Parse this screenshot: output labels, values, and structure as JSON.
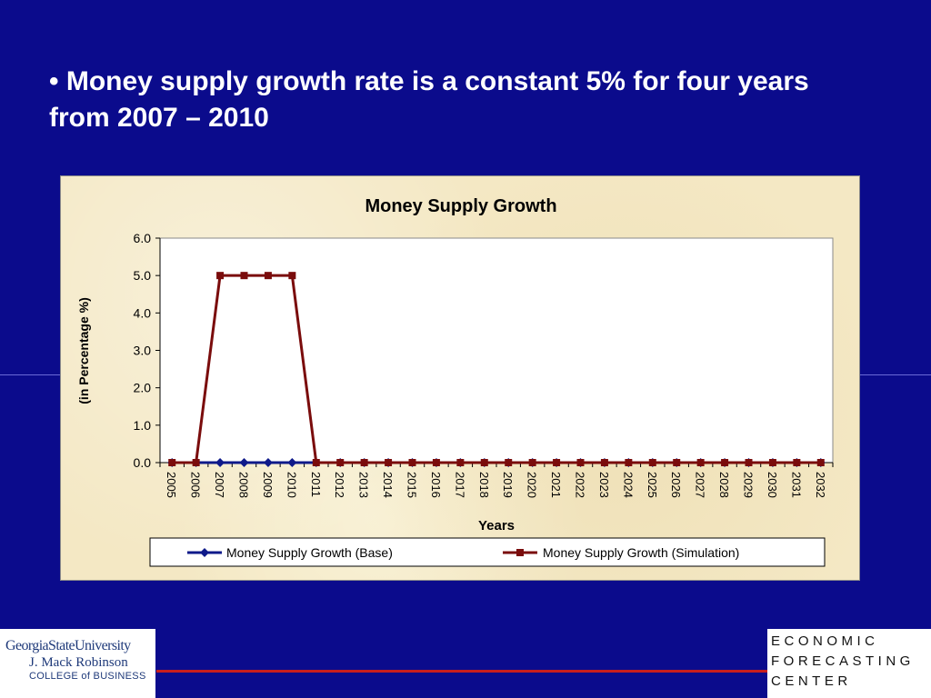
{
  "slide": {
    "headline": "• Money supply growth rate is a constant 5% for four years from 2007 – 2010"
  },
  "logos": {
    "gsu": {
      "line1": "GeorgiaStateUniversity",
      "line2": "J. Mack Robinson",
      "line3": "COLLEGE of BUSINESS"
    },
    "efc": {
      "line1": "ECONOMIC",
      "line2": "FORECASTING",
      "line3": "CENTER"
    }
  },
  "colors": {
    "background": "#0b0b8c",
    "chart_bg": "#f4e8c4",
    "base_series": "#0f1a8a",
    "simulation_series": "#7a0c0c",
    "footer_rule": "#c81e1e"
  },
  "chart_data": {
    "type": "line",
    "title": "Money Supply Growth",
    "xlabel": "Years",
    "ylabel": "(in Percentage %)",
    "ylim": [
      0,
      6
    ],
    "yticks": [
      "0.0",
      "1.0",
      "2.0",
      "3.0",
      "4.0",
      "5.0",
      "6.0"
    ],
    "grid": false,
    "legend_position": "bottom",
    "categories": [
      "2005",
      "2006",
      "2007",
      "2008",
      "2009",
      "2010",
      "2011",
      "2012",
      "2013",
      "2014",
      "2015",
      "2016",
      "2017",
      "2018",
      "2019",
      "2020",
      "2021",
      "2022",
      "2023",
      "2024",
      "2025",
      "2026",
      "2027",
      "2028",
      "2029",
      "2030",
      "2031",
      "2032"
    ],
    "series": [
      {
        "name": "Money Supply Growth (Base)",
        "marker": "diamond",
        "color": "#0f1a8a",
        "values": [
          0,
          0,
          0,
          0,
          0,
          0,
          0,
          0,
          0,
          0,
          0,
          0,
          0,
          0,
          0,
          0,
          0,
          0,
          0,
          0,
          0,
          0,
          0,
          0,
          0,
          0,
          0,
          0
        ]
      },
      {
        "name": "Money Supply Growth (Simulation)",
        "marker": "square",
        "color": "#7a0c0c",
        "values": [
          0,
          0,
          5,
          5,
          5,
          5,
          0,
          0,
          0,
          0,
          0,
          0,
          0,
          0,
          0,
          0,
          0,
          0,
          0,
          0,
          0,
          0,
          0,
          0,
          0,
          0,
          0,
          0
        ]
      }
    ]
  }
}
